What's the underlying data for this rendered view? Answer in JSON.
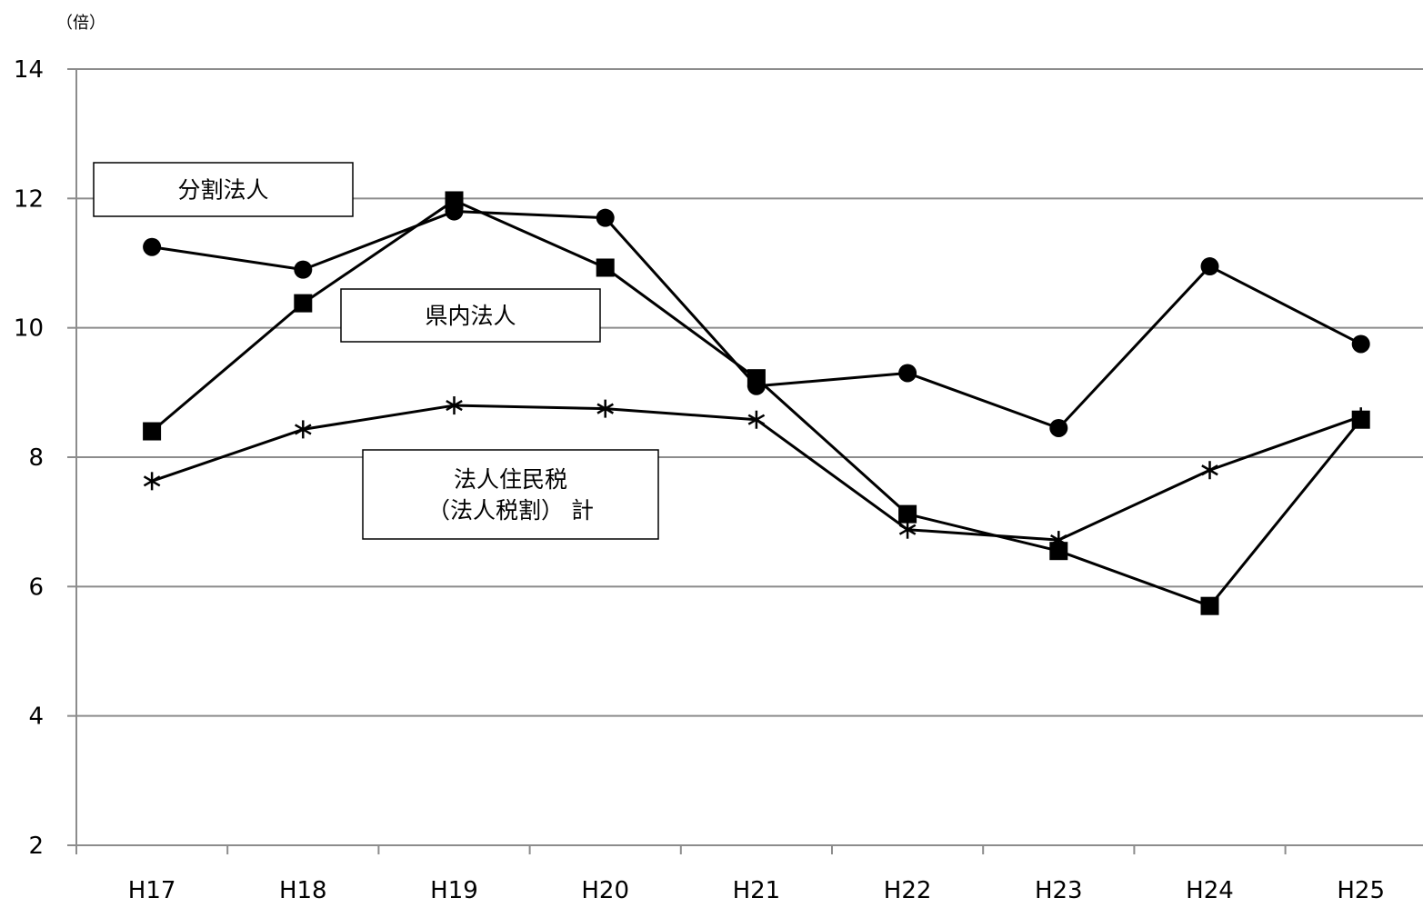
{
  "chart_data": {
    "type": "line",
    "unit_label": "（倍）",
    "title": "",
    "xlabel": "",
    "ylabel": "",
    "categories": [
      "H17",
      "H18",
      "H19",
      "H20",
      "H21",
      "H22",
      "H23",
      "H24",
      "H25"
    ],
    "ylim": [
      2,
      14
    ],
    "yticks": [
      2,
      4,
      6,
      8,
      10,
      12,
      14
    ],
    "grid": true,
    "legend": "none",
    "series": [
      {
        "name": "分割法人",
        "marker": "circle",
        "color": "#000000",
        "values": [
          11.25,
          10.9,
          11.8,
          11.7,
          9.1,
          9.3,
          8.45,
          10.95,
          9.75
        ]
      },
      {
        "name": "県内法人",
        "marker": "square",
        "color": "#000000",
        "values": [
          8.4,
          10.38,
          11.97,
          10.93,
          9.22,
          7.12,
          6.55,
          5.7,
          8.58
        ]
      },
      {
        "name": "法人住民税（法人税割） 計",
        "marker": "asterisk",
        "color": "#000000",
        "values": [
          7.63,
          8.43,
          8.8,
          8.75,
          8.58,
          6.88,
          6.72,
          7.8,
          8.63
        ]
      }
    ],
    "annotations": [
      {
        "series_index": 0,
        "lines": [
          "分割法人"
        ]
      },
      {
        "series_index": 1,
        "lines": [
          "県内法人"
        ]
      },
      {
        "series_index": 2,
        "lines": [
          "法人住民税",
          "（法人税割） 計"
        ]
      }
    ]
  }
}
